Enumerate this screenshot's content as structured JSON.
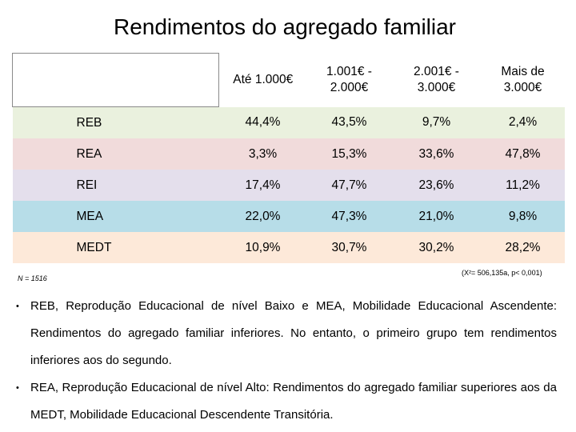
{
  "title": "Rendimentos do agregado familiar",
  "table": {
    "headers": [
      "",
      "Até 1.000€",
      "1.001€ -\n2.000€",
      "2.001€ -\n3.000€",
      "Mais de 3.000€"
    ],
    "rows": [
      {
        "label": "REB",
        "values": [
          "44,4%",
          "43,5%",
          "9,7%",
          "2,4%"
        ],
        "color": "#eaf1de"
      },
      {
        "label": "REA",
        "values": [
          "3,3%",
          "15,3%",
          "33,6%",
          "47,8%"
        ],
        "color": "#f1dbdb"
      },
      {
        "label": "REI",
        "values": [
          "17,4%",
          "47,7%",
          "23,6%",
          "11,2%"
        ],
        "color": "#e4dfec"
      },
      {
        "label": "MEA",
        "values": [
          "22,0%",
          "47,3%",
          "21,0%",
          "9,8%"
        ],
        "color": "#b7dde8"
      },
      {
        "label": "MEDT",
        "values": [
          "10,9%",
          "30,7%",
          "30,2%",
          "28,2%"
        ],
        "color": "#fde9d9"
      }
    ]
  },
  "notes": {
    "n": "N = 1516",
    "stat": "(X²= 506,135a, p< 0,001)"
  },
  "bullets": [
    "REB, Reprodução Educacional de nível Baixo e MEA, Mobilidade Educacional Ascendente: Rendimentos do agregado familiar inferiores. No entanto, o primeiro grupo tem rendimentos inferiores aos do segundo.",
    "REA, Reprodução Educacional de nível Alto: Rendimentos do agregado familiar superiores aos da MEDT, Mobilidade Educacional Descendente Transitória."
  ]
}
